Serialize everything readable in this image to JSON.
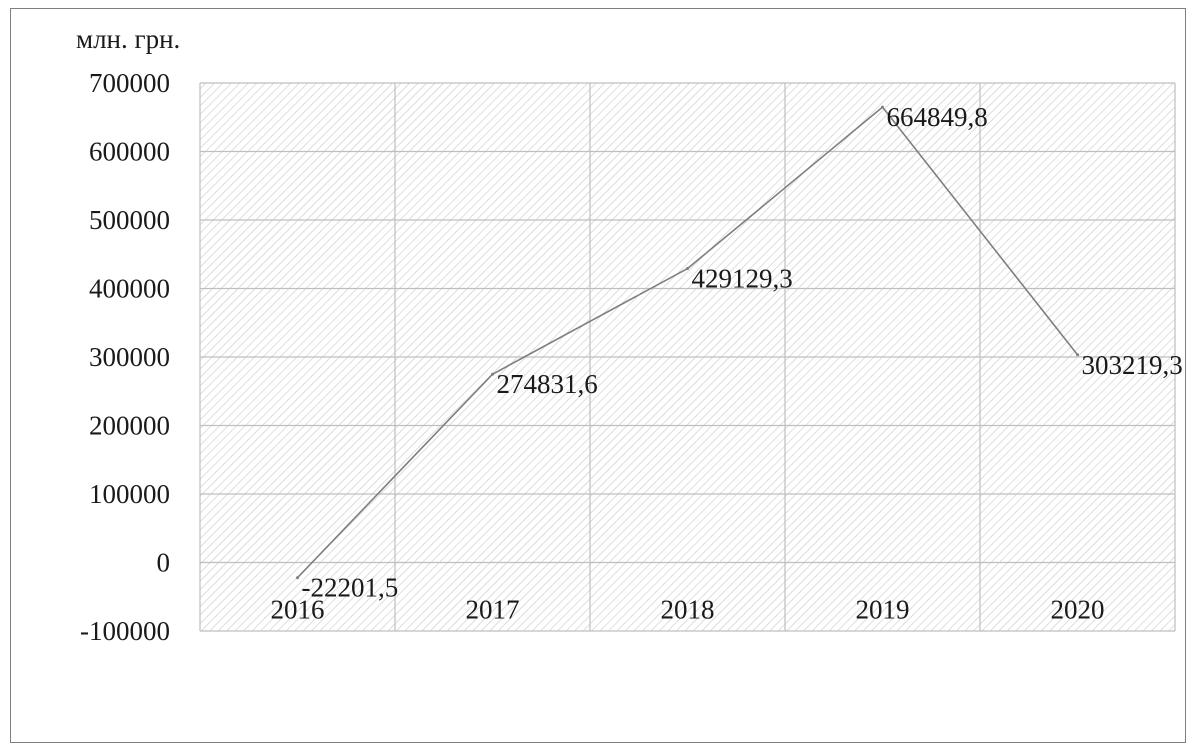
{
  "chart_data": {
    "type": "line",
    "unit_label": "млн. грн.",
    "categories": [
      "2016",
      "2017",
      "2018",
      "2019",
      "2020"
    ],
    "series": [
      {
        "values": [
          -22201.5,
          274831.6,
          429129.3,
          664849.8,
          303219.3
        ]
      }
    ],
    "data_labels": [
      "-22201,5",
      "274831,6",
      "429129,3",
      "664849,8",
      "303219,3"
    ],
    "ylim": [
      -100000,
      700000
    ],
    "yticks": [
      700000,
      600000,
      500000,
      400000,
      300000,
      200000,
      100000,
      0,
      -100000
    ],
    "ytick_labels": [
      "700000",
      "600000",
      "500000",
      "400000",
      "300000",
      "200000",
      "100000",
      "0",
      "-100000"
    ],
    "grid": true,
    "legend": "none",
    "colors": {
      "line": "#7f7f7f",
      "grid": "#bfbfbf",
      "hatch": "#cfcfcf",
      "frame": "#7f7f7f"
    }
  }
}
